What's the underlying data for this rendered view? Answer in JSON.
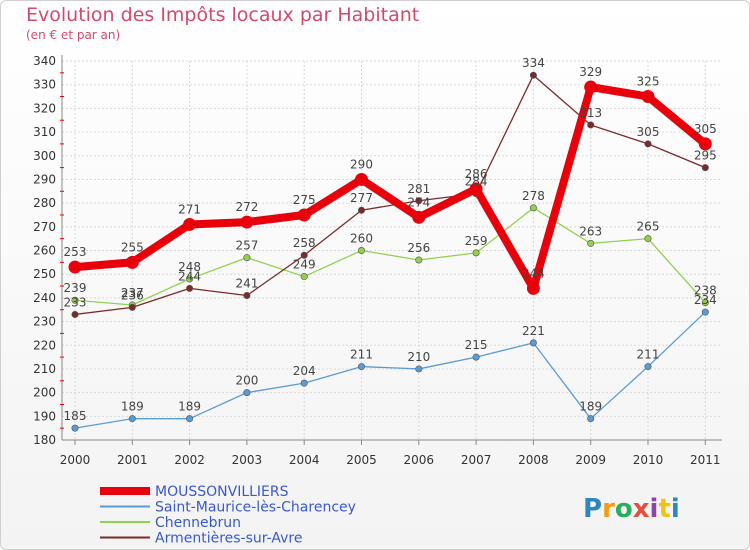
{
  "chart_data": {
    "type": "line",
    "title": "Evolution des Impôts locaux par Habitant",
    "subtitle": "(en € et par an)",
    "x": [
      "2000",
      "2001",
      "2002",
      "2003",
      "2004",
      "2005",
      "2006",
      "2007",
      "2008",
      "2009",
      "2010",
      "2011"
    ],
    "ylim": [
      180,
      340
    ],
    "yticks": [
      180,
      190,
      200,
      210,
      220,
      230,
      240,
      250,
      260,
      270,
      280,
      290,
      300,
      310,
      320,
      330,
      340
    ],
    "grid": true,
    "legend_position": "bottom-left",
    "series": [
      {
        "name": "MOUSSONVILLIERS",
        "color": "#e8000b",
        "values": [
          253,
          255,
          271,
          272,
          275,
          290,
          274,
          286,
          244,
          329,
          325,
          305
        ]
      },
      {
        "name": "Saint-Maurice-lès-Charencey",
        "color": "#5b9bd5",
        "values": [
          185,
          189,
          189,
          200,
          204,
          211,
          210,
          215,
          221,
          189,
          211,
          234
        ]
      },
      {
        "name": "Chennebrun",
        "color": "#92d050",
        "values": [
          239,
          237,
          248,
          257,
          249,
          260,
          256,
          259,
          278,
          263,
          265,
          238
        ]
      },
      {
        "name": "Armentières-sur-Avre",
        "color": "#7b2a2a",
        "values": [
          233,
          236,
          244,
          241,
          258,
          277,
          281,
          284,
          334,
          313,
          305,
          295
        ]
      }
    ]
  },
  "logo": {
    "text": "Proxiti"
  }
}
